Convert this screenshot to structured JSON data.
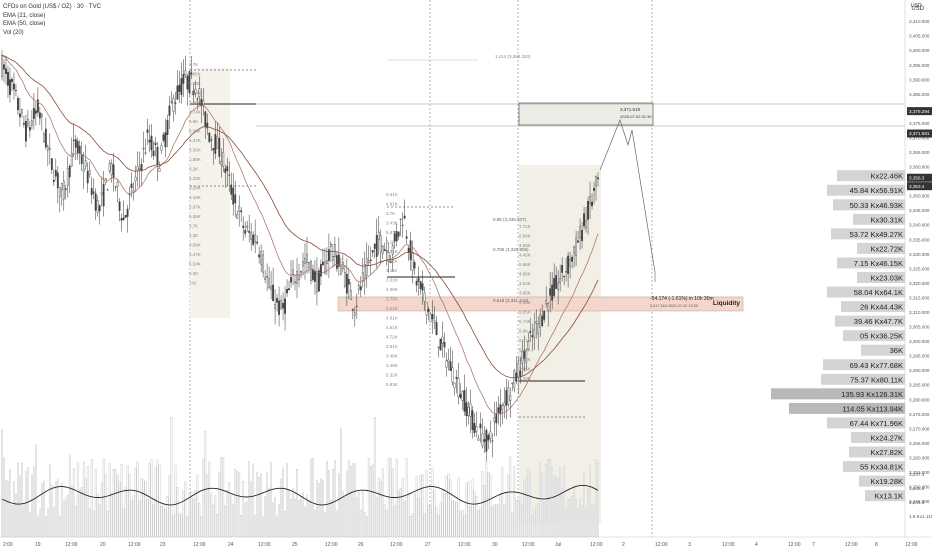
{
  "legend": {
    "title": "CFDs on Gold (US$ / OZ) · 30 · TVC",
    "ema21": "EMA (21, close)",
    "ema50": "EMA (50, close)",
    "vol": "Vol (20)"
  },
  "currency": "USD",
  "chart_data": {
    "type": "candlestick",
    "symbol": "CFDs on Gold (US$ / OZ)",
    "interval": "30",
    "ylim": [
      3240,
      3415
    ],
    "y_ticks": [
      3245,
      3250,
      3255,
      3260,
      3265,
      3270,
      3275,
      3280,
      3285,
      3290,
      3295,
      3300,
      3305,
      3310,
      3315,
      3320,
      3325,
      3330,
      3335,
      3340,
      3345,
      3350,
      3355,
      3360,
      3365,
      3370,
      3375,
      3380,
      3385,
      3390,
      3395,
      3400,
      3405,
      3410
    ],
    "y_tick_labels": [
      "3,245.000",
      "3,250.000",
      "3,255.000",
      "3,260.000",
      "3,265.000",
      "3,270.000",
      "3,275.000",
      "3,280.000",
      "3,285.000",
      "3,290.000",
      "3,295.000",
      "3,300.000",
      "3,305.000",
      "3,310.000",
      "3,315.000",
      "3,320.000",
      "3,325.000",
      "3,330.000",
      "3,335.000",
      "3,340.000",
      "3,345.000",
      "3,350.000",
      "3,355.000",
      "3,360.000",
      "3,365.000",
      "3,370.000",
      "3,375.000",
      "3,380.000",
      "3,385.000",
      "3,390.000",
      "3,395.000",
      "3,400.000",
      "3,405.000",
      "3,410.000"
    ],
    "x_ticks": [
      "2:00",
      "19",
      "12:00",
      "20",
      "12:00",
      "23",
      "12:00",
      "24",
      "12:00",
      "25",
      "12:00",
      "26",
      "12:00",
      "27",
      "12:00",
      "30",
      "12:00",
      "Jul",
      "12:00",
      "2",
      "12:00",
      "3",
      "12:00",
      "4",
      "12:00",
      "7",
      "12:00",
      "8",
      "12:00"
    ],
    "close_path": [
      3395,
      3385,
      3372,
      3380,
      3362,
      3350,
      3368,
      3358,
      3345,
      3360,
      3342,
      3355,
      3370,
      3362,
      3382,
      3390,
      3388,
      3372,
      3365,
      3350,
      3338,
      3335,
      3318,
      3310,
      3322,
      3328,
      3320,
      3332,
      3325,
      3312,
      3325,
      3335,
      3330,
      3344,
      3322,
      3312,
      3300,
      3290,
      3280,
      3270,
      3265,
      3278,
      3285,
      3296,
      3305,
      3315,
      3322,
      3330,
      3342,
      3355
    ],
    "price_labels": [
      {
        "price": 3379.2,
        "text": "3,379.294",
        "style": "dark"
      },
      {
        "price": 3371.5,
        "text": "3,371.581",
        "style": "dark"
      },
      {
        "price": 3356.3,
        "text": "3,356.3",
        "style": "dark"
      },
      {
        "price": 3353.4,
        "text": "3,353.4",
        "style": "dark"
      }
    ],
    "volume_profile": [
      {
        "price": 3357,
        "label": "Kx22.46K",
        "width": 68
      },
      {
        "price": 3352,
        "label": "45.84 Kx56.91K",
        "width": 78
      },
      {
        "price": 3347,
        "label": "50.33 Kx46.93K",
        "width": 72
      },
      {
        "price": 3342,
        "label": "Kx30.31K",
        "width": 52
      },
      {
        "price": 3337,
        "label": "53.72 Kx49.27K",
        "width": 74
      },
      {
        "price": 3332,
        "label": "Kx22.72K",
        "width": 48
      },
      {
        "price": 3327,
        "label": "7.15 Kx46.15K",
        "width": 68
      },
      {
        "price": 3322,
        "label": "Kx23.03K",
        "width": 48
      },
      {
        "price": 3317,
        "label": "58.04 Kx64.1K",
        "width": 78
      },
      {
        "price": 3312,
        "label": "26 Kx44.43K",
        "width": 64
      },
      {
        "price": 3307,
        "label": "39.46 Kx47.7K",
        "width": 70
      },
      {
        "price": 3302,
        "label": "05 Kx36.25K",
        "width": 62
      },
      {
        "price": 3297,
        "label": "36K",
        "width": 44
      },
      {
        "price": 3292,
        "label": "69.43 Kx77.68K",
        "width": 82
      },
      {
        "price": 3287,
        "label": "75.37 Kx80.11K",
        "width": 84
      },
      {
        "price": 3282,
        "label": "135.93 Kx126.31K",
        "width": 134
      },
      {
        "price": 3277,
        "label": "114.05 Kx113.94K",
        "width": 116
      },
      {
        "price": 3272,
        "label": "67.44 Kx71.96K",
        "width": 78
      },
      {
        "price": 3267,
        "label": "Kx24.27K",
        "width": 54
      },
      {
        "price": 3262,
        "label": "Kx27.82K",
        "width": 56
      },
      {
        "price": 3257,
        "label": "55 Kx34.81K",
        "width": 62
      },
      {
        "price": 3252,
        "label": "Kx19.28K",
        "width": 46
      },
      {
        "price": 3247,
        "label": "Kx13.1K",
        "width": 40
      }
    ],
    "annotations": {
      "liquidity_label": "Liquidity",
      "liquidity_zone": [
        3310.5,
        3315.3
      ],
      "target_price": 3371.518,
      "target_date": "2025-07-02 01:30",
      "move_label": "-54.174 (-1.61%) in 10h 30m",
      "move_detail": "3,317.344   2025-07-02   12:00",
      "top_note": "1.414 (3,393.320)",
      "fib_labels": [
        "0.88 (3,338.507)",
        "0.786 (3,328.906)",
        "0.618 (3,311.310)"
      ],
      "vol_left_a": [
        "3.7K",
        "6.06K",
        "5.08K",
        "4.08K",
        "3.68K",
        "4.74K",
        "5.9K",
        "6.09K",
        "6.37K",
        "3.32K",
        "1.89K",
        "3.2K",
        "3.33K",
        "3.24K",
        "3.18K",
        "5.97K",
        "5.26K",
        "3.7K",
        "3.3K",
        "3.58K",
        "3.47K",
        "5.54K",
        "5.2K",
        "742"
      ],
      "vol_left_b": [
        "5.41K",
        "4.91K",
        "3.7K",
        "3.43K",
        "5.87K",
        "3.1K",
        "4.91K",
        "3.41K",
        "3.11K",
        "3.31K",
        "4.09K",
        "3.75K",
        "3.21K",
        "4.61K",
        "4.61K",
        "4.72K",
        "3.51K",
        "3.48K",
        "3.48K",
        "5.32K",
        "6.83K"
      ],
      "vol_right": [
        "7.71K",
        "6.84K",
        "4.59K",
        "4.45K",
        "5.96K",
        "4.56K",
        "4.54K",
        "3.96K",
        "6.18K",
        "5.55K",
        "5.74K",
        "6.6K",
        "5.71K",
        "5.31K",
        "3.46K",
        "3.05K",
        "4.29K"
      ],
      "bottom_prices": [
        "3,247.3",
        "3,245.6",
        "3,244.3",
        "1.8 Kx1.11K"
      ]
    }
  }
}
